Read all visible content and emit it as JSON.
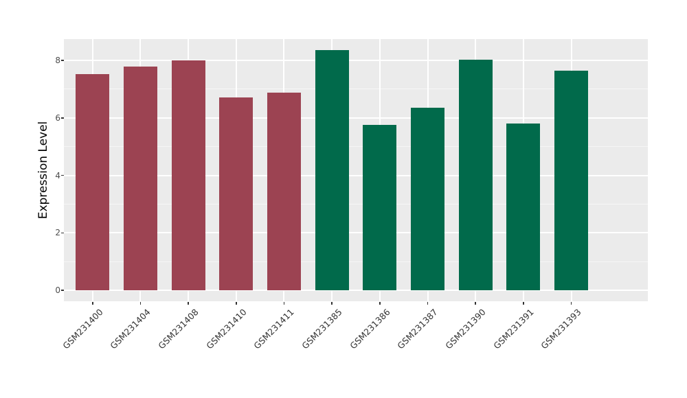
{
  "chart_data": {
    "type": "bar",
    "title": "",
    "xlabel": "",
    "ylabel": "Expression Level",
    "categories": [
      "GSM231400",
      "GSM231404",
      "GSM231408",
      "GSM231410",
      "GSM231411",
      "GSM231385",
      "GSM231386",
      "GSM231387",
      "GSM231390",
      "GSM231391",
      "GSM231393"
    ],
    "values": [
      7.53,
      7.78,
      8.0,
      6.72,
      6.88,
      8.35,
      5.76,
      6.35,
      8.02,
      5.81,
      7.63
    ],
    "groups": [
      "A",
      "A",
      "A",
      "A",
      "A",
      "B",
      "B",
      "B",
      "B",
      "B",
      "B"
    ],
    "group_colors": {
      "A": "#9C4352",
      "B": "#016A4B"
    },
    "ylim": [
      -0.38,
      8.74
    ],
    "yticks": [
      0,
      2,
      4,
      6,
      8
    ],
    "yticks_minor": [
      1,
      3,
      5,
      7
    ],
    "bar_width_frac": 0.7,
    "grid": "on",
    "legend": "none",
    "x_tick_rotation_deg": 45,
    "panel_bg": "#EBEBEB",
    "grid_major_color": "#FFFFFF",
    "grid_minor_color": "#F6F6F6",
    "tick_label_color": "#4D4D4D",
    "axis_title_color": "#000000",
    "figure_bg": "#FFFFFF"
  }
}
